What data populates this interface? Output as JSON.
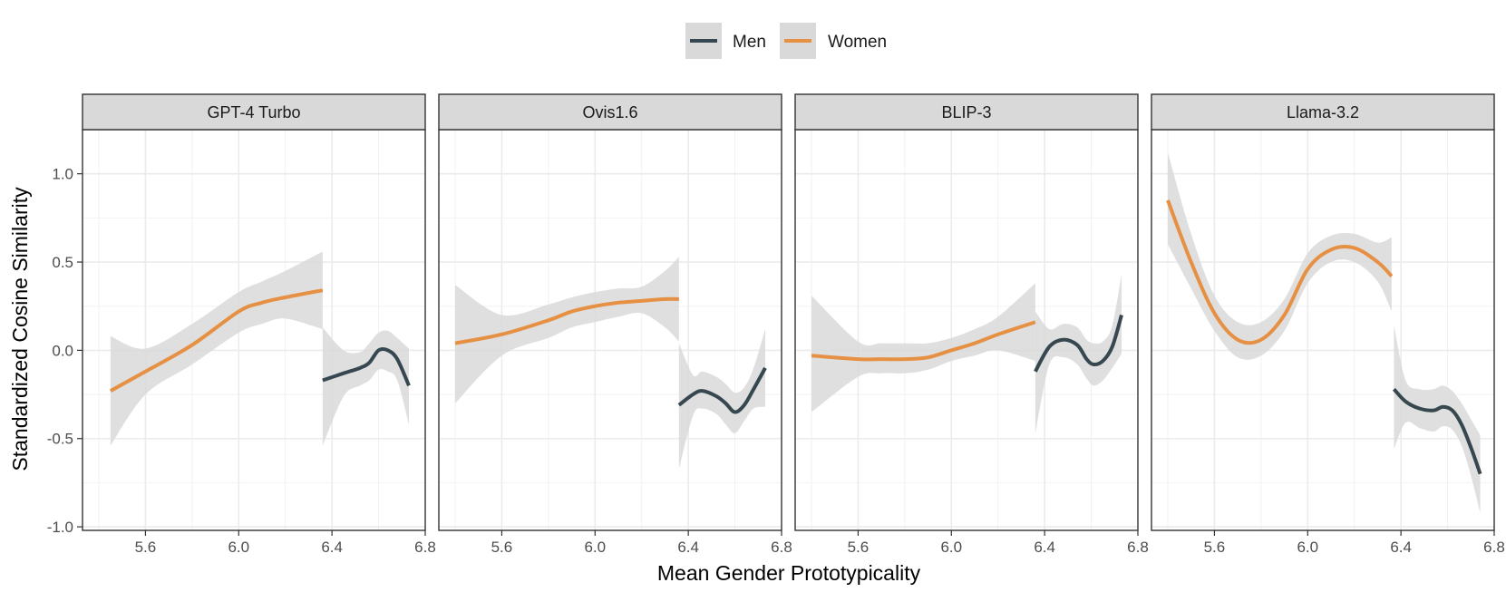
{
  "chart_data": {
    "type": "line",
    "xlabel": "Mean Gender Prototypicality",
    "ylabel": "Standardized Cosine Similarity",
    "xlim": [
      5.33,
      6.8
    ],
    "ylim": [
      -1.02,
      1.25
    ],
    "xticks": [
      5.6,
      6.0,
      6.4,
      6.8
    ],
    "xtick_labels": [
      "5.6",
      "6.0",
      "6.4",
      "6.8"
    ],
    "yticks": [
      -1.0,
      -0.5,
      0.0,
      0.5,
      1.0
    ],
    "ytick_labels": [
      "-1.0",
      "-0.5",
      "0.0",
      "0.5",
      "1.0"
    ],
    "legend": {
      "position": "top",
      "entries": [
        {
          "name": "Men",
          "color": "#36474f"
        },
        {
          "name": "Women",
          "color": "#e69043"
        }
      ]
    },
    "band_color": "#d9d9d9",
    "facets": [
      {
        "title": "GPT-4 Turbo",
        "series": [
          {
            "name": "Women",
            "x": [
              5.45,
              5.6,
              5.8,
              6.0,
              6.1,
              6.2,
              6.36
            ],
            "y": [
              -0.23,
              -0.12,
              0.03,
              0.22,
              0.27,
              0.3,
              0.34
            ],
            "lower": [
              -0.54,
              -0.25,
              -0.08,
              0.1,
              0.15,
              0.18,
              0.12
            ],
            "upper": [
              0.08,
              0.01,
              0.15,
              0.33,
              0.39,
              0.45,
              0.56
            ]
          },
          {
            "name": "Men",
            "x": [
              6.36,
              6.45,
              6.52,
              6.56,
              6.6,
              6.64,
              6.68,
              6.73
            ],
            "y": [
              -0.17,
              -0.13,
              -0.1,
              -0.07,
              0.0,
              0.0,
              -0.05,
              -0.2
            ],
            "lower": [
              -0.54,
              -0.26,
              -0.2,
              -0.17,
              -0.11,
              -0.12,
              -0.17,
              -0.42
            ],
            "upper": [
              0.13,
              0.0,
              -0.01,
              0.04,
              0.1,
              0.11,
              0.07,
              0.01
            ]
          }
        ]
      },
      {
        "title": "Ovis1.6",
        "series": [
          {
            "name": "Women",
            "x": [
              5.4,
              5.6,
              5.8,
              5.9,
              6.0,
              6.1,
              6.2,
              6.3,
              6.36
            ],
            "y": [
              0.04,
              0.09,
              0.17,
              0.22,
              0.25,
              0.27,
              0.28,
              0.29,
              0.29
            ],
            "lower": [
              -0.3,
              -0.03,
              0.07,
              0.13,
              0.16,
              0.19,
              0.21,
              0.13,
              0.05
            ],
            "upper": [
              0.37,
              0.2,
              0.26,
              0.3,
              0.33,
              0.35,
              0.36,
              0.45,
              0.53
            ]
          },
          {
            "name": "Men",
            "x": [
              6.36,
              6.42,
              6.46,
              6.52,
              6.56,
              6.6,
              6.64,
              6.68,
              6.73
            ],
            "y": [
              -0.31,
              -0.25,
              -0.23,
              -0.26,
              -0.3,
              -0.35,
              -0.31,
              -0.22,
              -0.1
            ],
            "lower": [
              -0.67,
              -0.37,
              -0.33,
              -0.36,
              -0.42,
              -0.47,
              -0.4,
              -0.33,
              -0.32
            ],
            "upper": [
              0.04,
              -0.14,
              -0.12,
              -0.15,
              -0.19,
              -0.24,
              -0.21,
              -0.1,
              0.12
            ]
          }
        ]
      },
      {
        "title": "BLIP-3",
        "series": [
          {
            "name": "Women",
            "x": [
              5.4,
              5.6,
              5.7,
              5.8,
              5.9,
              6.0,
              6.1,
              6.2,
              6.36
            ],
            "y": [
              -0.03,
              -0.05,
              -0.05,
              -0.05,
              -0.04,
              0.0,
              0.04,
              0.09,
              0.16
            ],
            "lower": [
              -0.35,
              -0.15,
              -0.13,
              -0.13,
              -0.11,
              -0.06,
              -0.03,
              0.0,
              -0.06
            ],
            "upper": [
              0.31,
              0.05,
              0.04,
              0.04,
              0.04,
              0.07,
              0.12,
              0.19,
              0.38
            ]
          },
          {
            "name": "Men",
            "x": [
              6.36,
              6.42,
              6.48,
              6.54,
              6.58,
              6.61,
              6.65,
              6.69,
              6.73
            ],
            "y": [
              -0.12,
              0.02,
              0.06,
              0.03,
              -0.05,
              -0.08,
              -0.06,
              0.02,
              0.2
            ],
            "lower": [
              -0.47,
              -0.08,
              -0.04,
              -0.08,
              -0.16,
              -0.2,
              -0.17,
              -0.1,
              -0.02
            ],
            "upper": [
              0.22,
              0.12,
              0.15,
              0.13,
              0.06,
              0.04,
              0.05,
              0.14,
              0.43
            ]
          }
        ]
      },
      {
        "title": "Llama-3.2",
        "series": [
          {
            "name": "Women",
            "x": [
              5.4,
              5.5,
              5.6,
              5.7,
              5.8,
              5.9,
              6.0,
              6.1,
              6.2,
              6.3,
              6.36
            ],
            "y": [
              0.85,
              0.5,
              0.21,
              0.06,
              0.06,
              0.2,
              0.46,
              0.57,
              0.58,
              0.5,
              0.42
            ],
            "lower": [
              0.6,
              0.35,
              0.11,
              -0.04,
              -0.03,
              0.11,
              0.38,
              0.5,
              0.5,
              0.39,
              0.22
            ],
            "upper": [
              1.12,
              0.66,
              0.31,
              0.16,
              0.16,
              0.29,
              0.55,
              0.65,
              0.66,
              0.61,
              0.64
            ]
          },
          {
            "name": "Men",
            "x": [
              6.37,
              6.42,
              6.48,
              6.54,
              6.58,
              6.62,
              6.66,
              6.7,
              6.74
            ],
            "y": [
              -0.22,
              -0.29,
              -0.33,
              -0.34,
              -0.32,
              -0.34,
              -0.42,
              -0.55,
              -0.7
            ],
            "lower": [
              -0.56,
              -0.41,
              -0.44,
              -0.46,
              -0.43,
              -0.45,
              -0.54,
              -0.71,
              -0.92
            ],
            "upper": [
              0.14,
              -0.17,
              -0.22,
              -0.22,
              -0.2,
              -0.23,
              -0.3,
              -0.39,
              -0.48
            ]
          }
        ]
      }
    ]
  }
}
